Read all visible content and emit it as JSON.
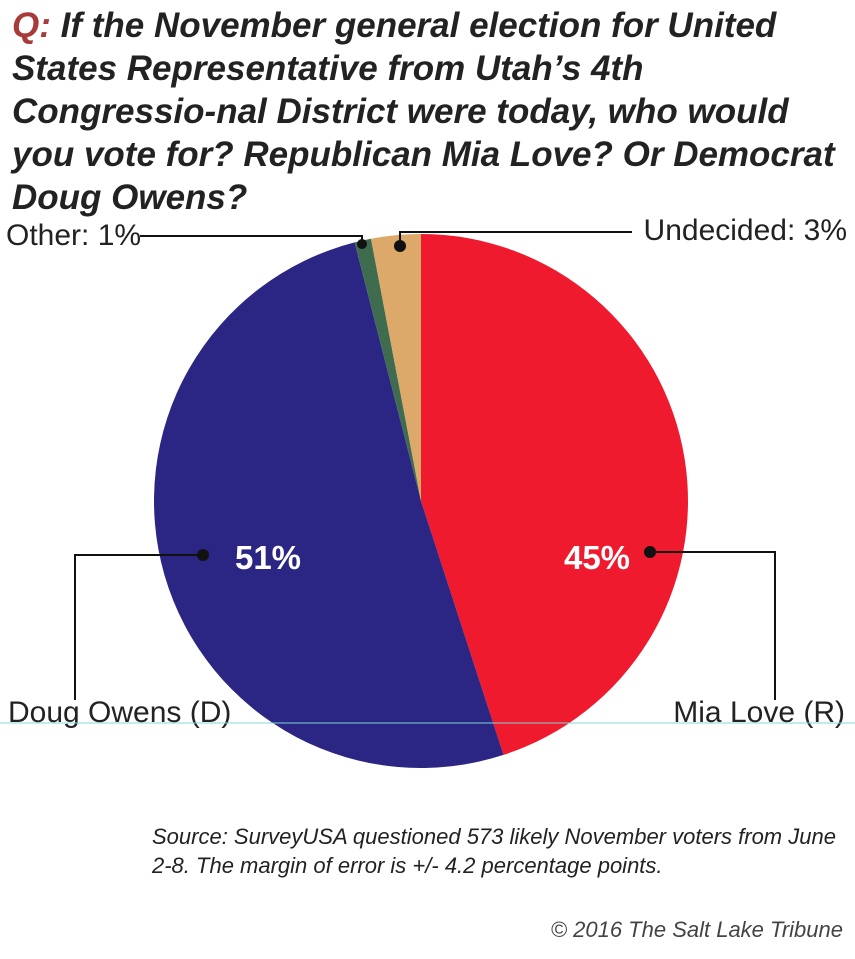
{
  "title": {
    "prefix": "Q:",
    "text": "If the November general election for United States Representative from Utah’s 4th Congressio-nal District were today, who would you vote for? Republican Mia Love? Or Democrat Doug Owens?"
  },
  "chart_data": {
    "type": "pie",
    "slices": [
      {
        "label": "Mia Love (R)",
        "value": 45,
        "display": "45%",
        "color": "#ef1a2d"
      },
      {
        "label": "Doug Owens (D)",
        "value": 51,
        "display": "51%",
        "color": "#2b2583"
      },
      {
        "label": "Other: 1%",
        "value": 1,
        "color": "#3f6b4e"
      },
      {
        "label": "Undecided: 3%",
        "value": 3,
        "color": "#dca96a"
      }
    ]
  },
  "source": "Source: SurveyUSA questioned 573 likely November voters from June 2-8. The margin of error is +/- 4.2 percentage points.",
  "credit": "© 2016 The Salt Lake Tribune"
}
